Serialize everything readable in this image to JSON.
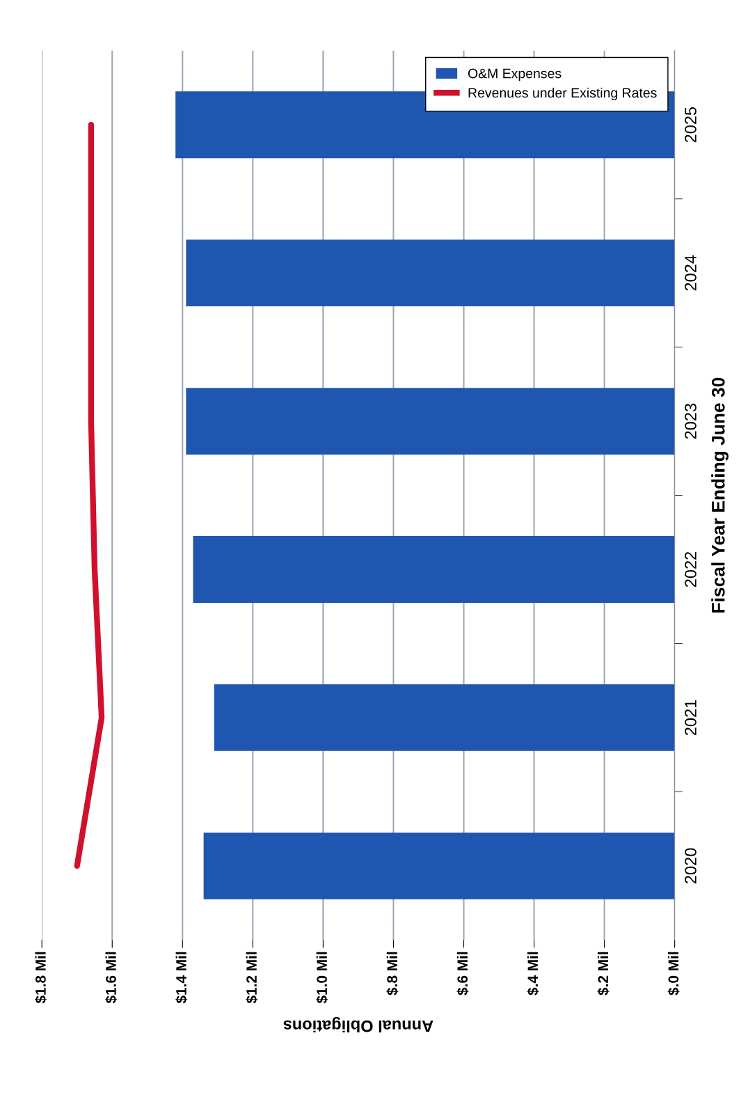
{
  "chart_data": {
    "type": "bar",
    "orientation": "horizontal",
    "categories": [
      "2025",
      "2024",
      "2023",
      "2022",
      "2021",
      "2020"
    ],
    "series": [
      {
        "name": "O&M Expenses",
        "color": "#1f56b0",
        "values": [
          1.42,
          1.39,
          1.39,
          1.37,
          1.31,
          1.34
        ]
      },
      {
        "name": "Revenues under Existing Rates",
        "type": "line",
        "color": "#d0102c",
        "values": [
          1.66,
          1.66,
          1.66,
          1.65,
          1.63,
          1.7
        ]
      }
    ],
    "xlabel": "Annual Obligations",
    "ylabel": "Fiscal Year Ending June 30",
    "xlim": [
      1.8,
      0
    ],
    "xticks": [
      {
        "value": 1.8,
        "label": "$1.8 Mil"
      },
      {
        "value": 1.6,
        "label": "$1.6 Mil"
      },
      {
        "value": 1.4,
        "label": "$1.4 Mil"
      },
      {
        "value": 1.2,
        "label": "$1.2 Mil"
      },
      {
        "value": 1.0,
        "label": "$1.0 Mil"
      },
      {
        "value": 0.8,
        "label": "$.8 Mil"
      },
      {
        "value": 0.6,
        "label": "$.6 Mil"
      },
      {
        "value": 0.4,
        "label": "$.4 Mil"
      },
      {
        "value": 0.2,
        "label": "$.2 Mil"
      },
      {
        "value": 0,
        "label": "$.0 Mil"
      }
    ],
    "grid": "x",
    "legend": "top right",
    "marker": "none",
    "line_style": "solid"
  }
}
